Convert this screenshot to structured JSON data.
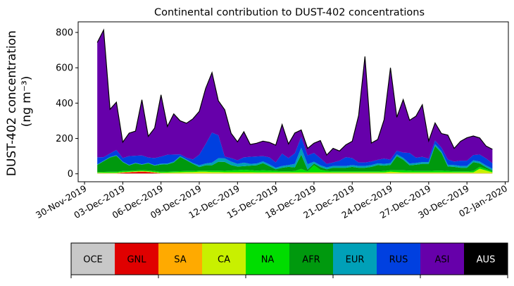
{
  "chart_data": {
    "type": "area",
    "title": "Continental contribution to DUST-402 concentrations",
    "ylabel_line1": "DUST-402 concentration",
    "ylabel_line2": "(ng m⁻³)",
    "xlabel": "",
    "ylim": [
      -45,
      860
    ],
    "yticks": [
      0,
      200,
      400,
      600,
      800
    ],
    "xrange_days": [
      "2019-11-29T12:00",
      "2020-01-02T06:00"
    ],
    "xticks": [
      "30-Nov-2019",
      "03-Dec-2019",
      "06-Dec-2019",
      "09-Dec-2019",
      "12-Dec-2019",
      "15-Dec-2019",
      "18-Dec-2019",
      "21-Dec-2019",
      "24-Dec-2019",
      "27-Dec-2019",
      "30-Dec-2019",
      "02-Jan-2020"
    ],
    "grid": false,
    "legend_position": "bottom colorbar",
    "x": [
      "2019-12-01T00:00",
      "2019-12-01T12:00",
      "2019-12-02T00:00",
      "2019-12-02T12:00",
      "2019-12-03T00:00",
      "2019-12-03T12:00",
      "2019-12-04T00:00",
      "2019-12-04T12:00",
      "2019-12-05T00:00",
      "2019-12-05T12:00",
      "2019-12-06T00:00",
      "2019-12-06T12:00",
      "2019-12-07T00:00",
      "2019-12-07T12:00",
      "2019-12-08T00:00",
      "2019-12-08T12:00",
      "2019-12-09T00:00",
      "2019-12-09T12:00",
      "2019-12-10T00:00",
      "2019-12-10T12:00",
      "2019-12-11T00:00",
      "2019-12-11T12:00",
      "2019-12-12T00:00",
      "2019-12-12T12:00",
      "2019-12-13T00:00",
      "2019-12-13T12:00",
      "2019-12-14T00:00",
      "2019-12-14T12:00",
      "2019-12-15T00:00",
      "2019-12-15T12:00",
      "2019-12-16T00:00",
      "2019-12-16T12:00",
      "2019-12-17T00:00",
      "2019-12-17T12:00",
      "2019-12-18T00:00",
      "2019-12-18T12:00",
      "2019-12-19T00:00",
      "2019-12-19T12:00",
      "2019-12-20T00:00",
      "2019-12-20T12:00",
      "2019-12-21T00:00",
      "2019-12-21T12:00",
      "2019-12-22T00:00",
      "2019-12-22T12:00",
      "2019-12-23T00:00",
      "2019-12-23T12:00",
      "2019-12-24T00:00",
      "2019-12-24T12:00",
      "2019-12-25T00:00",
      "2019-12-25T12:00",
      "2019-12-26T00:00",
      "2019-12-26T12:00",
      "2019-12-27T00:00",
      "2019-12-27T12:00",
      "2019-12-28T00:00",
      "2019-12-28T12:00",
      "2019-12-29T00:00",
      "2019-12-29T12:00",
      "2019-12-30T00:00",
      "2019-12-30T12:00",
      "2019-12-31T00:00",
      "2019-12-31T12:00",
      "2020-01-01T00:00"
    ],
    "series": [
      {
        "name": "OCE",
        "color": "#c8c8c8",
        "values": [
          2,
          2,
          2,
          2,
          2,
          2,
          2,
          2,
          2,
          2,
          2,
          2,
          2,
          2,
          2,
          2,
          2,
          2,
          2,
          2,
          2,
          2,
          2,
          2,
          2,
          2,
          2,
          2,
          2,
          2,
          2,
          2,
          2,
          2,
          2,
          2,
          2,
          2,
          2,
          2,
          2,
          2,
          2,
          2,
          2,
          2,
          2,
          2,
          2,
          2,
          2,
          2,
          2,
          2,
          2,
          2,
          2,
          2,
          2,
          2,
          2,
          2,
          2
        ]
      },
      {
        "name": "GNL",
        "color": "#e00000",
        "values": [
          0,
          0,
          0,
          0,
          4,
          6,
          8,
          10,
          8,
          4,
          0,
          0,
          0,
          0,
          0,
          0,
          0,
          0,
          0,
          0,
          0,
          0,
          0,
          0,
          0,
          0,
          0,
          0,
          0,
          0,
          0,
          0,
          0,
          0,
          0,
          0,
          0,
          0,
          0,
          0,
          0,
          0,
          0,
          0,
          0,
          0,
          0,
          0,
          0,
          0,
          0,
          0,
          0,
          0,
          0,
          0,
          0,
          0,
          0,
          0,
          0,
          0,
          0
        ]
      },
      {
        "name": "SA",
        "color": "#ffaa00",
        "values": [
          2,
          2,
          2,
          2,
          2,
          2,
          2,
          2,
          2,
          2,
          2,
          2,
          2,
          2,
          2,
          2,
          2,
          2,
          2,
          2,
          2,
          2,
          2,
          2,
          2,
          2,
          2,
          2,
          2,
          2,
          2,
          2,
          2,
          2,
          2,
          2,
          2,
          2,
          2,
          2,
          2,
          2,
          2,
          2,
          2,
          2,
          2,
          2,
          2,
          2,
          2,
          2,
          2,
          2,
          2,
          2,
          2,
          2,
          2,
          2,
          2,
          2,
          2
        ]
      },
      {
        "name": "CA",
        "color": "#c8f000",
        "values": [
          2,
          2,
          2,
          2,
          2,
          2,
          2,
          2,
          2,
          2,
          2,
          3,
          4,
          5,
          6,
          6,
          8,
          8,
          6,
          6,
          5,
          5,
          5,
          5,
          5,
          4,
          4,
          4,
          4,
          4,
          4,
          4,
          4,
          4,
          4,
          4,
          4,
          4,
          4,
          4,
          4,
          4,
          4,
          4,
          4,
          4,
          8,
          6,
          4,
          4,
          4,
          4,
          4,
          4,
          4,
          4,
          4,
          4,
          4,
          4,
          25,
          15,
          4
        ]
      },
      {
        "name": "NA",
        "color": "#00dd00",
        "values": [
          4,
          5,
          6,
          6,
          6,
          5,
          5,
          5,
          5,
          6,
          6,
          6,
          6,
          6,
          6,
          6,
          6,
          6,
          8,
          8,
          8,
          10,
          12,
          14,
          12,
          10,
          12,
          10,
          8,
          6,
          6,
          8,
          20,
          6,
          40,
          15,
          8,
          6,
          6,
          6,
          6,
          6,
          6,
          6,
          6,
          8,
          8,
          10,
          12,
          10,
          8,
          8,
          8,
          10,
          10,
          8,
          6,
          6,
          6,
          8,
          10,
          8,
          6
        ]
      },
      {
        "name": "AFR",
        "color": "#00990e",
        "values": [
          40,
          60,
          80,
          90,
          50,
          30,
          40,
          30,
          40,
          30,
          40,
          40,
          50,
          80,
          60,
          40,
          20,
          30,
          30,
          50,
          50,
          30,
          20,
          20,
          25,
          30,
          40,
          25,
          10,
          20,
          25,
          20,
          80,
          10,
          10,
          15,
          10,
          20,
          20,
          20,
          25,
          20,
          20,
          25,
          35,
          30,
          30,
          80,
          60,
          30,
          35,
          40,
          40,
          140,
          100,
          25,
          25,
          20,
          20,
          50,
          20,
          10,
          5
        ]
      },
      {
        "name": "EUR",
        "color": "#00a0b8",
        "values": [
          3,
          3,
          3,
          3,
          3,
          3,
          3,
          3,
          3,
          3,
          5,
          5,
          5,
          5,
          5,
          5,
          10,
          10,
          15,
          20,
          20,
          20,
          15,
          20,
          10,
          10,
          10,
          10,
          8,
          10,
          10,
          20,
          40,
          30,
          10,
          10,
          10,
          10,
          10,
          10,
          10,
          10,
          10,
          10,
          10,
          10,
          10,
          10,
          10,
          10,
          10,
          10,
          10,
          10,
          10,
          10,
          10,
          10,
          10,
          10,
          10,
          10,
          10
        ]
      },
      {
        "name": "RUS",
        "color": "#0040e0",
        "values": [
          40,
          20,
          20,
          30,
          20,
          50,
          40,
          50,
          30,
          40,
          40,
          50,
          40,
          10,
          10,
          20,
          60,
          110,
          170,
          130,
          10,
          20,
          20,
          30,
          40,
          40,
          30,
          40,
          30,
          70,
          40,
          60,
          60,
          50,
          50,
          40,
          20,
          20,
          30,
          50,
          40,
          20,
          20,
          20,
          20,
          30,
          20,
          20,
          30,
          60,
          30,
          30,
          20,
          20,
          20,
          30,
          20,
          30,
          30,
          30,
          40,
          40,
          30
        ]
      },
      {
        "name": "ASI",
        "color": "#6600aa",
        "values": [
          650,
          720,
          250,
          270,
          90,
          130,
          140,
          315,
          120,
          170,
          350,
          160,
          230,
          190,
          195,
          230,
          245,
          315,
          340,
          195,
          265,
          140,
          105,
          145,
          70,
          75,
          85,
          85,
          98,
          165,
          80,
          115,
          40,
          40,
          55,
          100,
          50,
          80,
          55,
          70,
          95,
          265,
          600,
          105,
          115,
          220,
          520,
          190,
          300,
          185,
          235,
          295,
          100,
          100,
          80,
          138,
          75,
          110,
          130,
          108,
          94,
          70,
          80
        ]
      },
      {
        "name": "AUS",
        "color": "#000000",
        "values": [
          0,
          0,
          0,
          0,
          0,
          0,
          0,
          0,
          0,
          0,
          0,
          0,
          0,
          0,
          0,
          0,
          0,
          0,
          0,
          0,
          0,
          0,
          0,
          0,
          0,
          0,
          0,
          0,
          0,
          0,
          0,
          0,
          0,
          0,
          0,
          0,
          0,
          0,
          0,
          0,
          0,
          0,
          0,
          0,
          0,
          0,
          0,
          0,
          0,
          0,
          0,
          0,
          0,
          0,
          0,
          0,
          0,
          0,
          0,
          0,
          0,
          0,
          0
        ]
      }
    ]
  }
}
